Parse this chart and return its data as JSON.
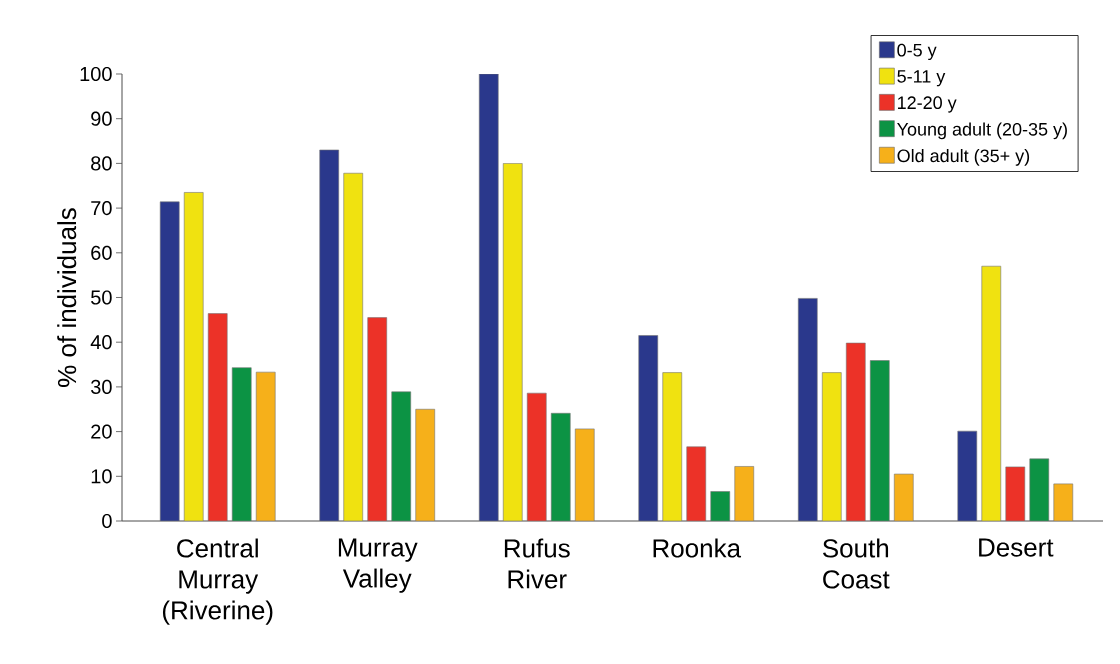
{
  "chart_data": {
    "type": "bar",
    "ylabel": "% of individuals",
    "categories": [
      "Central Murray (Riverine)",
      "Murray Valley",
      "Rufus River",
      "Roonka",
      "South Coast",
      "Desert"
    ],
    "series": [
      {
        "name": "0-5 y",
        "color": "#2a388c",
        "values": [
          71.4,
          83.0,
          100,
          41.5,
          49.8,
          20.1
        ]
      },
      {
        "name": "5-11 y",
        "color": "#f0e210",
        "values": [
          73.5,
          77.8,
          80.0,
          33.2,
          33.2,
          57.0
        ]
      },
      {
        "name": "12-20 y",
        "color": "#ec3228",
        "values": [
          46.4,
          45.5,
          28.6,
          16.6,
          39.8,
          12.1
        ]
      },
      {
        "name": "Young adult (20-35 y)",
        "color": "#0c9344",
        "values": [
          34.3,
          28.9,
          24.1,
          6.6,
          35.9,
          13.9
        ]
      },
      {
        "name": "Old adult (35+ y)",
        "color": "#f6b01a",
        "values": [
          33.3,
          25.0,
          20.6,
          12.2,
          10.5,
          8.3
        ]
      }
    ],
    "ylim": [
      0,
      100
    ],
    "yticks": [
      0,
      10,
      20,
      30,
      40,
      50,
      60,
      70,
      80,
      90,
      100
    ],
    "legend": "top right"
  }
}
